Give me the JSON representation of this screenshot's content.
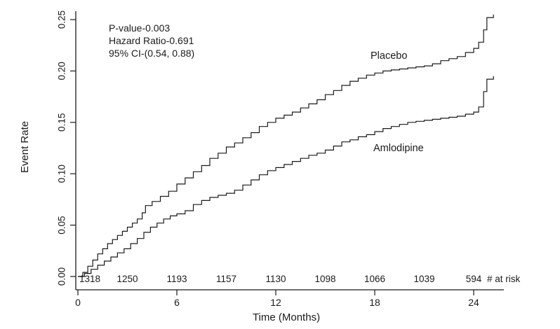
{
  "chart_data": {
    "type": "line",
    "subtype": "step",
    "title": "",
    "xlabel": "Time (Months)",
    "ylabel": "Event Rate",
    "xlim": [
      0,
      25.5
    ],
    "ylim": [
      0,
      0.25
    ],
    "x_ticks": [
      0,
      6,
      12,
      18,
      24
    ],
    "y_ticks": [
      "0.00",
      "0.05",
      "0.10",
      "0.15",
      "0.20",
      "0.25"
    ],
    "grid": "off",
    "legend_position": "inline-labels",
    "annotations": [
      "P-value-0.003",
      "Hazard Ratio-0.691",
      "95% CI-(0.54, 0.88)"
    ],
    "series": [
      {
        "name": "Placebo",
        "points": [
          [
            0,
            0
          ],
          [
            0.3,
            0.004
          ],
          [
            0.6,
            0.01
          ],
          [
            0.9,
            0.016
          ],
          [
            1.2,
            0.022
          ],
          [
            1.5,
            0.027
          ],
          [
            1.8,
            0.032
          ],
          [
            2.1,
            0.036
          ],
          [
            2.4,
            0.04
          ],
          [
            2.7,
            0.044
          ],
          [
            3,
            0.048
          ],
          [
            3.3,
            0.052
          ],
          [
            3.6,
            0.056
          ],
          [
            3.9,
            0.062
          ],
          [
            4.1,
            0.069
          ],
          [
            4.5,
            0.073
          ],
          [
            5,
            0.078
          ],
          [
            5.5,
            0.083
          ],
          [
            6,
            0.09
          ],
          [
            6.5,
            0.096
          ],
          [
            7,
            0.102
          ],
          [
            7.5,
            0.108
          ],
          [
            8,
            0.115
          ],
          [
            8.5,
            0.12
          ],
          [
            9,
            0.126
          ],
          [
            9.5,
            0.13
          ],
          [
            10,
            0.135
          ],
          [
            10.5,
            0.14
          ],
          [
            11,
            0.146
          ],
          [
            11.5,
            0.15
          ],
          [
            12,
            0.154
          ],
          [
            12.5,
            0.157
          ],
          [
            13,
            0.16
          ],
          [
            13.5,
            0.164
          ],
          [
            14,
            0.168
          ],
          [
            14.5,
            0.172
          ],
          [
            15,
            0.177
          ],
          [
            15.5,
            0.181
          ],
          [
            16,
            0.186
          ],
          [
            16.5,
            0.19
          ],
          [
            17,
            0.193
          ],
          [
            17.5,
            0.196
          ],
          [
            18,
            0.198
          ],
          [
            18.5,
            0.2
          ],
          [
            19,
            0.201
          ],
          [
            19.5,
            0.202
          ],
          [
            20,
            0.203
          ],
          [
            20.5,
            0.204
          ],
          [
            21,
            0.205
          ],
          [
            21.5,
            0.207
          ],
          [
            22,
            0.21
          ],
          [
            22.5,
            0.212
          ],
          [
            23,
            0.214
          ],
          [
            23.5,
            0.218
          ],
          [
            24,
            0.222
          ],
          [
            24.3,
            0.228
          ],
          [
            24.6,
            0.24
          ],
          [
            24.8,
            0.252
          ],
          [
            25.2,
            0.255
          ]
        ]
      },
      {
        "name": "Amlodipine",
        "points": [
          [
            0,
            0
          ],
          [
            0.4,
            0.003
          ],
          [
            0.8,
            0.007
          ],
          [
            1.2,
            0.011
          ],
          [
            1.6,
            0.015
          ],
          [
            2,
            0.019
          ],
          [
            2.4,
            0.023
          ],
          [
            2.8,
            0.027
          ],
          [
            3.2,
            0.032
          ],
          [
            3.6,
            0.037
          ],
          [
            4,
            0.043
          ],
          [
            4.4,
            0.048
          ],
          [
            4.8,
            0.052
          ],
          [
            5.2,
            0.056
          ],
          [
            5.6,
            0.059
          ],
          [
            6,
            0.061
          ],
          [
            6.5,
            0.064
          ],
          [
            7,
            0.07
          ],
          [
            7.5,
            0.074
          ],
          [
            8,
            0.077
          ],
          [
            8.5,
            0.079
          ],
          [
            9,
            0.081
          ],
          [
            9.5,
            0.084
          ],
          [
            10,
            0.089
          ],
          [
            10.5,
            0.094
          ],
          [
            11,
            0.099
          ],
          [
            11.5,
            0.103
          ],
          [
            12,
            0.106
          ],
          [
            12.5,
            0.109
          ],
          [
            13,
            0.112
          ],
          [
            13.5,
            0.115
          ],
          [
            14,
            0.118
          ],
          [
            14.5,
            0.12
          ],
          [
            15,
            0.123
          ],
          [
            15.5,
            0.127
          ],
          [
            16,
            0.131
          ],
          [
            16.5,
            0.133
          ],
          [
            17,
            0.136
          ],
          [
            17.5,
            0.138
          ],
          [
            18,
            0.141
          ],
          [
            18.5,
            0.144
          ],
          [
            19,
            0.146
          ],
          [
            19.5,
            0.148
          ],
          [
            20,
            0.15
          ],
          [
            20.5,
            0.151
          ],
          [
            21,
            0.152
          ],
          [
            21.5,
            0.153
          ],
          [
            22,
            0.154
          ],
          [
            22.5,
            0.155
          ],
          [
            23,
            0.156
          ],
          [
            23.5,
            0.158
          ],
          [
            24,
            0.16
          ],
          [
            24.3,
            0.165
          ],
          [
            24.6,
            0.18
          ],
          [
            24.8,
            0.192
          ],
          [
            25.2,
            0.195
          ]
        ]
      }
    ],
    "at_risk": {
      "label": "# at risk",
      "times": [
        0,
        3,
        6,
        9,
        12,
        15,
        18,
        21,
        24
      ],
      "values": [
        1318,
        1250,
        1193,
        1157,
        1130,
        1098,
        1066,
        1039,
        594
      ]
    },
    "colors": {
      "line": "#1a1a1a",
      "background": "#ffffff"
    }
  }
}
